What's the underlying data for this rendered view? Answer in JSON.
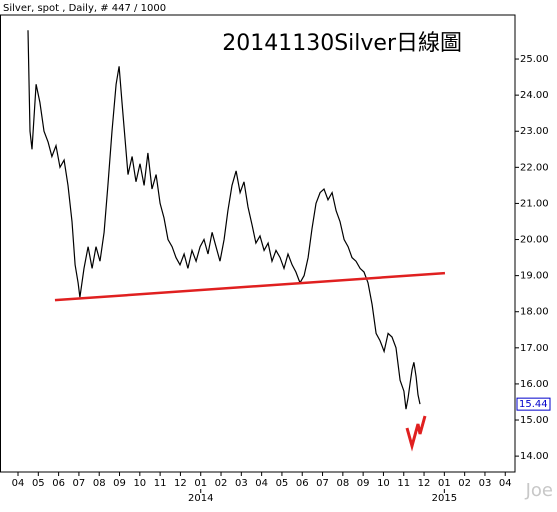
{
  "chart_data": {
    "type": "line",
    "header": "Silver, spot , Daily, # 447 / 1000",
    "title": "20141130Silver日線圖",
    "watermark": "Joe",
    "xlim": [
      -0.69,
      24.48
    ],
    "xticks": [
      {
        "value": 0,
        "label": "04"
      },
      {
        "value": 1,
        "label": "05"
      },
      {
        "value": 2,
        "label": "06"
      },
      {
        "value": 3,
        "label": "07"
      },
      {
        "value": 4,
        "label": "08"
      },
      {
        "value": 5,
        "label": "09"
      },
      {
        "value": 6,
        "label": "10"
      },
      {
        "value": 7,
        "label": "11"
      },
      {
        "value": 8,
        "label": "12"
      },
      {
        "value": 9,
        "label": "01"
      },
      {
        "value": 10,
        "label": "02"
      },
      {
        "value": 11,
        "label": "03"
      },
      {
        "value": 12,
        "label": "04"
      },
      {
        "value": 13,
        "label": "05"
      },
      {
        "value": 14,
        "label": "06"
      },
      {
        "value": 15,
        "label": "07"
      },
      {
        "value": 16,
        "label": "08"
      },
      {
        "value": 17,
        "label": "09"
      },
      {
        "value": 18,
        "label": "10"
      },
      {
        "value": 19,
        "label": "11"
      },
      {
        "value": 20,
        "label": "12"
      },
      {
        "value": 21,
        "label": "01"
      },
      {
        "value": 22,
        "label": "02"
      },
      {
        "value": 23,
        "label": "03"
      },
      {
        "value": 24,
        "label": "04"
      }
    ],
    "year_labels": [
      "2014",
      "2015"
    ],
    "ylim": [
      13.56,
      26.22
    ],
    "yticks": [
      {
        "value": 14,
        "label": "14.00"
      },
      {
        "value": 15,
        "label": "15.00"
      },
      {
        "value": 16,
        "label": "16.00"
      },
      {
        "value": 17,
        "label": "17.00"
      },
      {
        "value": 18,
        "label": "18.00"
      },
      {
        "value": 19,
        "label": "19.00"
      },
      {
        "value": 20,
        "label": "20.00"
      },
      {
        "value": 21,
        "label": "21.00"
      },
      {
        "value": 22,
        "label": "22.00"
      },
      {
        "value": 23,
        "label": "23.00"
      },
      {
        "value": 24,
        "label": "24.00"
      },
      {
        "value": 25,
        "label": "25.00"
      }
    ],
    "grid": false,
    "series": [
      {
        "color": "#000000",
        "x": [
          0.49,
          0.59,
          0.69,
          0.89,
          1.08,
          1.28,
          1.48,
          1.67,
          1.87,
          2.07,
          2.27,
          2.46,
          2.66,
          2.81,
          2.96,
          3.05,
          3.25,
          3.45,
          3.65,
          3.84,
          4.04,
          4.24,
          4.43,
          4.63,
          4.83,
          4.98,
          5.12,
          5.27,
          5.42,
          5.62,
          5.81,
          6.01,
          6.21,
          6.4,
          6.6,
          6.8,
          7.0,
          7.19,
          7.39,
          7.59,
          7.78,
          7.98,
          8.18,
          8.37,
          8.57,
          8.77,
          8.97,
          9.16,
          9.36,
          9.56,
          9.75,
          9.95,
          10.15,
          10.34,
          10.54,
          10.74,
          10.94,
          11.13,
          11.33,
          11.53,
          11.72,
          11.92,
          12.12,
          12.32,
          12.51,
          12.71,
          12.91,
          13.1,
          13.3,
          13.5,
          13.69,
          13.89,
          14.09,
          14.29,
          14.48,
          14.68,
          14.88,
          15.07,
          15.27,
          15.47,
          15.67,
          15.86,
          16.06,
          16.26,
          16.45,
          16.65,
          16.85,
          17.04,
          17.24,
          17.44,
          17.64,
          17.83,
          18.03,
          18.23,
          18.42,
          18.62,
          18.82,
          19.01,
          19.11,
          19.21,
          19.31,
          19.41,
          19.5,
          19.61,
          19.7,
          19.8
        ],
        "values": [
          25.8,
          23.0,
          22.5,
          24.3,
          23.8,
          23.0,
          22.7,
          22.3,
          22.6,
          22.0,
          22.2,
          21.5,
          20.5,
          19.3,
          18.8,
          18.4,
          19.2,
          19.8,
          19.2,
          19.8,
          19.4,
          20.2,
          21.5,
          23.0,
          24.3,
          24.8,
          23.8,
          22.8,
          21.8,
          22.3,
          21.6,
          22.1,
          21.5,
          22.4,
          21.4,
          21.8,
          21.0,
          20.6,
          20.0,
          19.8,
          19.5,
          19.3,
          19.6,
          19.2,
          19.7,
          19.4,
          19.8,
          20.0,
          19.6,
          20.2,
          19.8,
          19.4,
          20.0,
          20.8,
          21.5,
          21.9,
          21.3,
          21.6,
          20.9,
          20.4,
          19.9,
          20.1,
          19.7,
          19.9,
          19.4,
          19.7,
          19.5,
          19.2,
          19.6,
          19.3,
          19.1,
          18.8,
          19.0,
          19.5,
          20.3,
          21.0,
          21.3,
          21.4,
          21.1,
          21.3,
          20.8,
          20.5,
          20.0,
          19.8,
          19.5,
          19.4,
          19.2,
          19.1,
          18.8,
          18.2,
          17.4,
          17.2,
          16.9,
          17.4,
          17.3,
          17.0,
          16.1,
          15.8,
          15.3,
          15.6,
          16.0,
          16.4,
          16.6,
          16.2,
          15.7,
          15.44
        ]
      }
    ],
    "last_label_color": "#0000cc",
    "trendline": {
      "color": "#e02020",
      "x": [
        1.82,
        21.03
      ],
      "values": [
        18.32,
        19.07
      ]
    }
  }
}
